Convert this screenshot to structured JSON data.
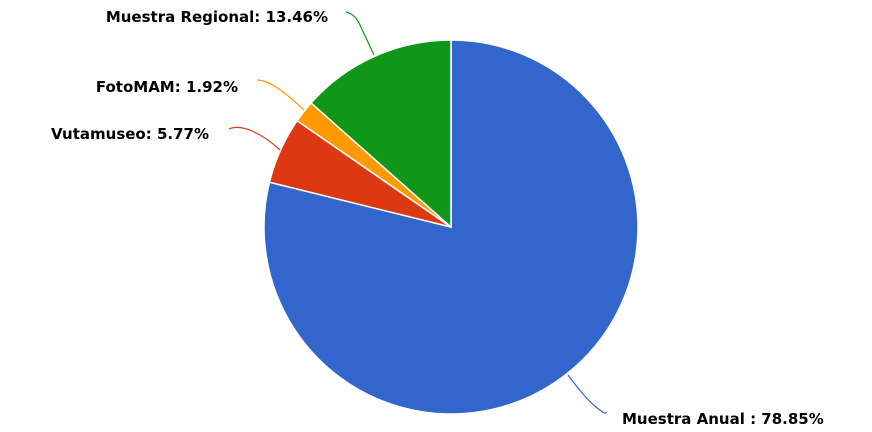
{
  "chart_data": {
    "type": "pie",
    "title": "",
    "series": [
      {
        "slices": [
          {
            "label": "Muestra Anual",
            "value": 78.85,
            "display": "Muestra Anual : 78.85%",
            "color": "#3366cc"
          },
          {
            "label": "Vutamuseo",
            "value": 5.77,
            "display": "Vutamuseo: 5.77%",
            "color": "#dc3912"
          },
          {
            "label": "FotoMAM",
            "value": 1.92,
            "display": "FotoMAM: 1.92%",
            "color": "#ff9900"
          },
          {
            "label": "Muestra Regional",
            "value": 13.46,
            "display": "Muestra Regional: 13.46%",
            "color": "#109618"
          }
        ]
      }
    ],
    "legend": "none",
    "start_angle": "12 o'clock",
    "direction": "clockwise"
  }
}
